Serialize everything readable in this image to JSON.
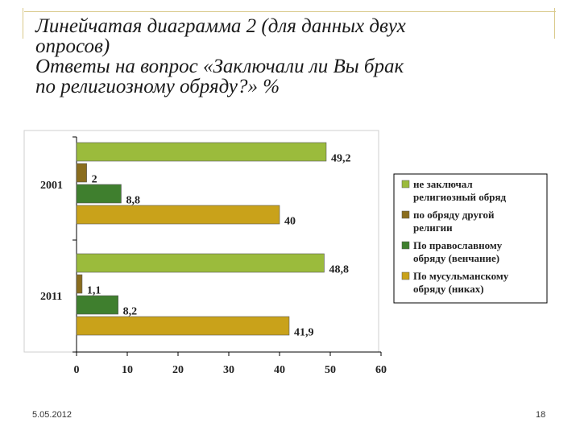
{
  "slide": {
    "title_lines": [
      "Линейчатая диаграмма 2 (для данных двух",
      "опросов)",
      "Ответы на вопрос «Заключали ли Вы брак",
      "по религиозному обряду?» %"
    ],
    "date": "5.05.2012",
    "page_number": "18"
  },
  "chart_data": {
    "type": "bar",
    "orientation": "horizontal",
    "categories": [
      "2001",
      "2011"
    ],
    "series": [
      {
        "name": "не заключал религиозный обряд",
        "color": "#9bbb3c",
        "values": [
          49.2,
          48.8
        ],
        "labels": [
          "49,2",
          "48,8"
        ]
      },
      {
        "name": "по обряду другой религии",
        "color": "#8a6d1e",
        "values": [
          2,
          1.1
        ],
        "labels": [
          "2",
          "1,1"
        ]
      },
      {
        "name": "По православному обряду (венчание)",
        "color": "#3f7f2e",
        "values": [
          8.8,
          8.2
        ],
        "labels": [
          "8,8",
          "8,2"
        ]
      },
      {
        "name": "По мусульманскому обряду (никах)",
        "color": "#c9a21a",
        "values": [
          40,
          41.9
        ],
        "labels": [
          "40",
          "41,9"
        ]
      }
    ],
    "xlim": [
      0,
      60
    ],
    "xticks": [
      "0",
      "10",
      "20",
      "30",
      "40",
      "50",
      "60"
    ],
    "legend": "right",
    "title": "",
    "xlabel": "",
    "ylabel": ""
  }
}
